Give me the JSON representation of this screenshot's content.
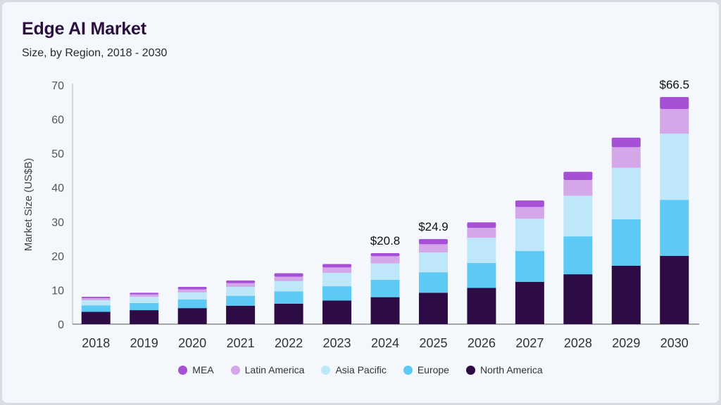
{
  "header": {
    "title": "Edge AI Market",
    "subtitle": "Size, by Region, 2018 - 2030"
  },
  "chart_data": {
    "type": "bar",
    "stacked": true,
    "title": "Edge AI Market",
    "subtitle": "Size, by Region, 2018 - 2030",
    "xlabel": "",
    "ylabel": "Market Size (US$B)",
    "ylim": [
      0,
      70
    ],
    "yticks": [
      0,
      10,
      20,
      30,
      40,
      50,
      60,
      70
    ],
    "categories": [
      "2018",
      "2019",
      "2020",
      "2021",
      "2022",
      "2023",
      "2024",
      "2025",
      "2026",
      "2027",
      "2028",
      "2029",
      "2030"
    ],
    "series": [
      {
        "name": "North America",
        "color": "#2d0c45",
        "values": [
          3.6,
          4.1,
          4.7,
          5.4,
          6.0,
          6.9,
          7.9,
          9.2,
          10.6,
          12.4,
          14.6,
          17.1,
          20.0
        ]
      },
      {
        "name": "Europe",
        "color": "#5ccaf5",
        "values": [
          1.9,
          2.1,
          2.5,
          2.9,
          3.6,
          4.2,
          5.1,
          6.0,
          7.3,
          9.0,
          11.1,
          13.6,
          16.4
        ]
      },
      {
        "name": "Asia Pacific",
        "color": "#bfe7fa",
        "values": [
          1.5,
          1.8,
          2.1,
          2.6,
          3.0,
          3.9,
          4.8,
          5.8,
          7.4,
          9.5,
          11.9,
          15.1,
          19.4
        ]
      },
      {
        "name": "Latin America",
        "color": "#d3a7e8",
        "values": [
          0.6,
          0.7,
          0.9,
          1.1,
          1.3,
          1.6,
          2.1,
          2.4,
          2.9,
          3.4,
          4.6,
          6.0,
          7.2
        ]
      },
      {
        "name": "MEA",
        "color": "#a650d6",
        "values": [
          0.4,
          0.5,
          0.7,
          0.8,
          1.0,
          1.0,
          0.9,
          1.5,
          1.6,
          1.9,
          2.4,
          2.8,
          3.5
        ]
      }
    ],
    "total_labels": {
      "2024": "$20.8",
      "2025": "$24.9",
      "2030": "$66.5"
    },
    "legend_position": "bottom",
    "legend_order": [
      "MEA",
      "Latin America",
      "Asia Pacific",
      "Europe",
      "North America"
    ],
    "grid": false
  }
}
